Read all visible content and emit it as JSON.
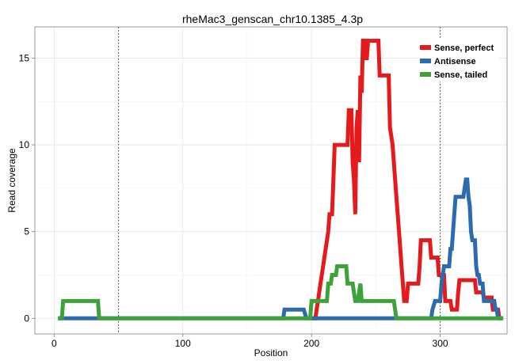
{
  "chart_data": {
    "type": "line",
    "title": "rheMac3_genscan_chr10.1385_4.3p",
    "xlabel": "Position",
    "ylabel": "Read coverage",
    "xlim": [
      -15,
      352
    ],
    "ylim": [
      -0.9,
      16.8
    ],
    "xticks": [
      0,
      100,
      200,
      300
    ],
    "yticks": [
      0,
      5,
      10,
      15
    ],
    "vlines": [
      50,
      300
    ],
    "grid": true,
    "legend_position": "top-right",
    "series": [
      {
        "name": "Sense, perfect",
        "color": "#E41A1C",
        "points": [
          [
            200,
            0
          ],
          [
            203,
            0
          ],
          [
            205,
            1
          ],
          [
            207,
            2
          ],
          [
            209,
            3
          ],
          [
            211,
            4
          ],
          [
            213,
            5
          ],
          [
            214,
            6
          ],
          [
            216,
            6
          ],
          [
            217,
            8
          ],
          [
            218,
            10
          ],
          [
            221,
            10
          ],
          [
            228,
            10
          ],
          [
            229,
            12
          ],
          [
            231,
            12
          ],
          [
            232,
            9
          ],
          [
            233,
            8
          ],
          [
            234,
            6
          ],
          [
            235,
            11
          ],
          [
            236,
            12
          ],
          [
            237,
            9
          ],
          [
            238,
            14
          ],
          [
            239,
            13
          ],
          [
            240,
            16
          ],
          [
            241,
            16
          ],
          [
            242,
            15
          ],
          [
            243,
            15
          ],
          [
            244,
            16
          ],
          [
            252,
            16
          ],
          [
            253,
            14
          ],
          [
            260,
            14
          ],
          [
            261,
            11
          ],
          [
            263,
            10
          ],
          [
            264,
            9
          ],
          [
            265,
            8
          ],
          [
            266,
            7
          ],
          [
            268,
            5
          ],
          [
            270,
            3
          ],
          [
            271,
            2
          ],
          [
            272,
            1
          ],
          [
            274,
            1
          ],
          [
            275,
            2
          ],
          [
            283,
            2
          ],
          [
            284,
            3
          ],
          [
            285,
            4.5
          ],
          [
            292,
            4.5
          ],
          [
            293,
            3.5
          ],
          [
            298,
            3.5
          ],
          [
            299,
            2.5
          ],
          [
            303,
            2.5
          ],
          [
            304,
            1
          ],
          [
            308,
            1
          ],
          [
            309,
            0.5
          ],
          [
            313,
            0.5
          ],
          [
            314,
            1.5
          ],
          [
            315,
            2.2
          ],
          [
            327,
            2.2
          ],
          [
            328,
            1.5
          ],
          [
            333,
            1.5
          ],
          [
            334,
            1.2
          ],
          [
            340,
            1.2
          ],
          [
            341,
            0.5
          ],
          [
            345,
            0.5
          ],
          [
            346,
            0
          ]
        ]
      },
      {
        "name": "Antisense",
        "color": "#2B6BAE",
        "points": [
          [
            3,
            0
          ],
          [
            178,
            0
          ],
          [
            179,
            0.5
          ],
          [
            194,
            0.5
          ],
          [
            196,
            0
          ],
          [
            293,
            0
          ],
          [
            294,
            0.5
          ],
          [
            296,
            1
          ],
          [
            300,
            1
          ],
          [
            301,
            2
          ],
          [
            303,
            3
          ],
          [
            307,
            3
          ],
          [
            308,
            4
          ],
          [
            309,
            4
          ],
          [
            310,
            5
          ],
          [
            311,
            6
          ],
          [
            312,
            7
          ],
          [
            318,
            7
          ],
          [
            319,
            7.5
          ],
          [
            320,
            8
          ],
          [
            321,
            8
          ],
          [
            322,
            7
          ],
          [
            323,
            6.5
          ],
          [
            324,
            5
          ],
          [
            325,
            4.5
          ],
          [
            327,
            4.5
          ],
          [
            328,
            3
          ],
          [
            329,
            2.5
          ],
          [
            330,
            2.5
          ],
          [
            331,
            2
          ],
          [
            333,
            2
          ],
          [
            334,
            1
          ],
          [
            342,
            1
          ],
          [
            343,
            0.5
          ],
          [
            344,
            0.5
          ],
          [
            345,
            0
          ],
          [
            349,
            0
          ]
        ]
      },
      {
        "name": "Sense, tailed",
        "color": "#3DA23A",
        "points": [
          [
            3,
            0
          ],
          [
            6,
            0
          ],
          [
            7,
            1
          ],
          [
            34,
            1
          ],
          [
            35,
            0
          ],
          [
            199,
            0
          ],
          [
            200,
            1
          ],
          [
            212,
            1
          ],
          [
            213,
            2
          ],
          [
            215,
            2
          ],
          [
            216,
            2.5
          ],
          [
            219,
            2.5
          ],
          [
            220,
            3
          ],
          [
            227,
            3
          ],
          [
            228,
            2
          ],
          [
            232,
            2
          ],
          [
            233,
            1.5
          ],
          [
            234,
            1
          ],
          [
            236,
            1
          ],
          [
            237,
            1.5
          ],
          [
            238,
            2
          ],
          [
            239,
            1
          ],
          [
            264,
            1
          ],
          [
            266,
            0
          ],
          [
            349,
            0
          ]
        ]
      }
    ]
  }
}
